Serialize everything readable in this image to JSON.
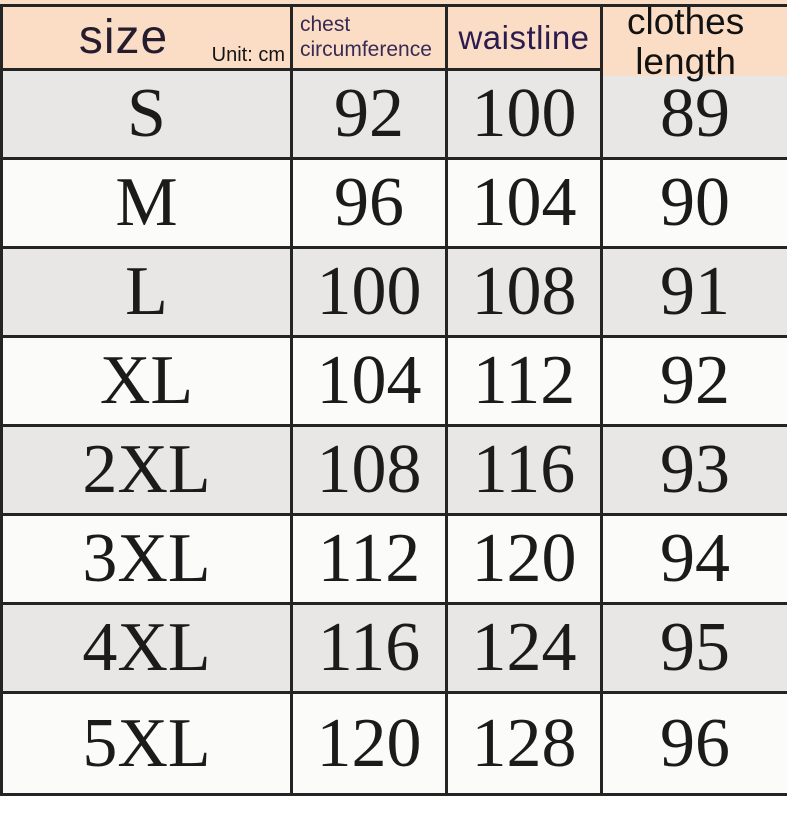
{
  "colors": {
    "header_bg": "#fbddc6",
    "row_alt_bg": "#e8e7e5",
    "row_bg": "#fbfbfa",
    "border": "#242424",
    "header_purple_text": "#2a1c4e",
    "body_text": "#1b1b1b"
  },
  "chart_data": {
    "type": "table",
    "unit_note": "Unit: cm",
    "columns": [
      {
        "id": "size",
        "label": "size"
      },
      {
        "id": "chest",
        "label": "chest\ncircumference"
      },
      {
        "id": "waist",
        "label": "waistline"
      },
      {
        "id": "length",
        "label": "clothes\nlength"
      }
    ],
    "rows": [
      {
        "size": "S",
        "chest": "92",
        "waist": "100",
        "length": "89"
      },
      {
        "size": "M",
        "chest": "96",
        "waist": "104",
        "length": "90"
      },
      {
        "size": "L",
        "chest": "100",
        "waist": "108",
        "length": "91"
      },
      {
        "size": "XL",
        "chest": "104",
        "waist": "112",
        "length": "92"
      },
      {
        "size": "2XL",
        "chest": "108",
        "waist": "116",
        "length": "93"
      },
      {
        "size": "3XL",
        "chest": "112",
        "waist": "120",
        "length": "94"
      },
      {
        "size": "4XL",
        "chest": "116",
        "waist": "124",
        "length": "95"
      },
      {
        "size": "5XL",
        "chest": "120",
        "waist": "128",
        "length": "96"
      }
    ]
  }
}
